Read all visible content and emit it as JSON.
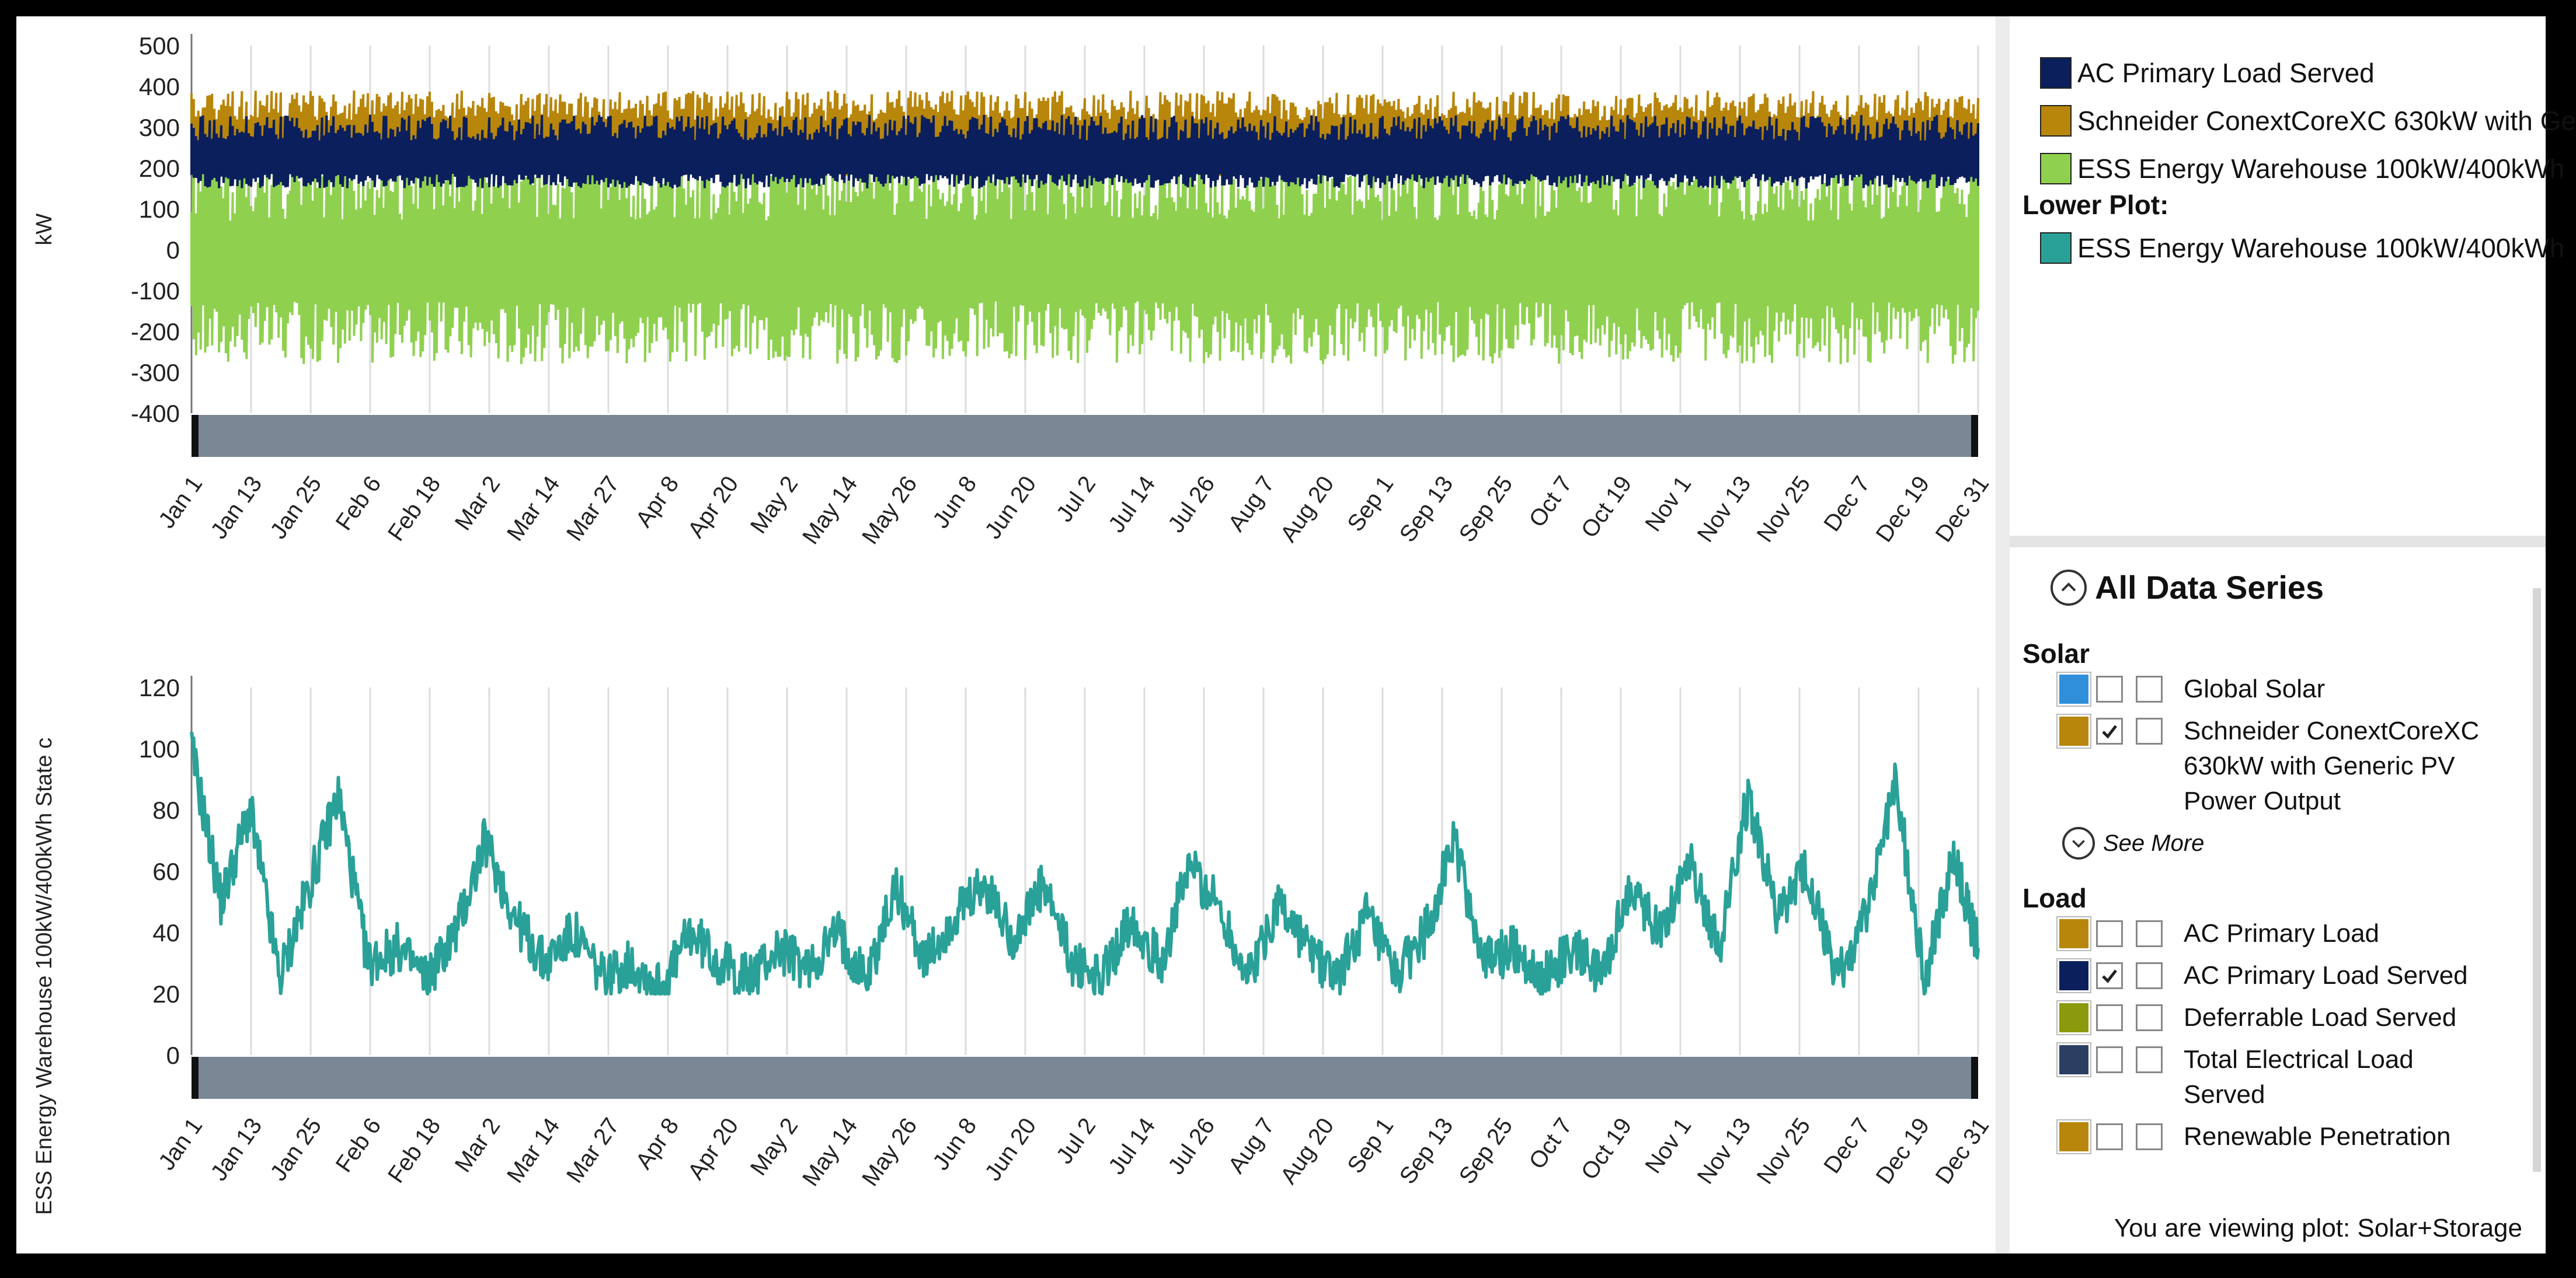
{
  "chart_data": [
    {
      "type": "area",
      "ylabel": "kW",
      "ylim": [
        -400,
        500
      ],
      "yticks": [
        500,
        400,
        300,
        200,
        100,
        0,
        -100,
        -200,
        -300,
        -400
      ],
      "x_tick_labels": [
        "Jan 1",
        "Jan 13",
        "Jan 25",
        "Feb 6",
        "Feb 18",
        "Mar 2",
        "Mar 14",
        "Mar 27",
        "Apr 8",
        "Apr 20",
        "May 2",
        "May 14",
        "May 26",
        "Jun 8",
        "Jun 20",
        "Jul 2",
        "Jul 14",
        "Jul 26",
        "Aug 7",
        "Aug 20",
        "Sep 1",
        "Sep 13",
        "Sep 25",
        "Oct 7",
        "Oct 19",
        "Nov 1",
        "Nov 13",
        "Nov 25",
        "Dec 7",
        "Dec 19",
        "Dec 31"
      ],
      "grid": true,
      "series": [
        {
          "name": "AC Primary Load Served",
          "color": "#0b1f5c",
          "band": [
            150,
            330
          ]
        },
        {
          "name": "Schneider ConextCoreXC 630kW with Ge",
          "color": "#b8860b",
          "band": [
            180,
            390
          ]
        },
        {
          "name": "ESS Energy Warehouse 100kW/400kWh",
          "color": "#8fd14f",
          "band": [
            -280,
            260
          ]
        }
      ]
    },
    {
      "type": "line",
      "ylabel": "ESS Energy Warehouse 100kW/400kWh State c",
      "ylim": [
        0,
        120
      ],
      "yticks": [
        120,
        100,
        80,
        60,
        40,
        20,
        0
      ],
      "x_tick_labels": [
        "Jan 1",
        "Jan 13",
        "Jan 25",
        "Feb 6",
        "Feb 18",
        "Mar 2",
        "Mar 14",
        "Mar 27",
        "Apr 8",
        "Apr 20",
        "May 2",
        "May 14",
        "May 26",
        "Jun 8",
        "Jun 20",
        "Jul 2",
        "Jul 14",
        "Jul 26",
        "Aug 7",
        "Aug 20",
        "Sep 1",
        "Sep 13",
        "Sep 25",
        "Oct 7",
        "Oct 19",
        "Nov 1",
        "Nov 13",
        "Nov 25",
        "Dec 7",
        "Dec 19",
        "Dec 31"
      ],
      "grid": true,
      "series": [
        {
          "name": "ESS Energy Warehouse 100kW/400kWh",
          "color": "#2aa198",
          "day": [
            0,
            6,
            12,
            18,
            24,
            30,
            36,
            42,
            48,
            54,
            60,
            66,
            72,
            78,
            84,
            90,
            96,
            102,
            108,
            114,
            120,
            126,
            132,
            138,
            144,
            150,
            156,
            162,
            168,
            174,
            180,
            186,
            192,
            198,
            204,
            210,
            216,
            222,
            228,
            234,
            240,
            246,
            252,
            258,
            264,
            270,
            276,
            282,
            288,
            294,
            300,
            306,
            312,
            318,
            324,
            330,
            336,
            342,
            348,
            354,
            360,
            365
          ],
          "values": [
            100,
            50,
            80,
            25,
            55,
            85,
            30,
            35,
            25,
            40,
            70,
            45,
            30,
            40,
            25,
            30,
            22,
            40,
            30,
            25,
            35,
            28,
            40,
            25,
            55,
            30,
            45,
            55,
            38,
            55,
            30,
            25,
            45,
            30,
            62,
            48,
            25,
            50,
            35,
            25,
            45,
            25,
            40,
            70,
            30,
            35,
            25,
            35,
            25,
            55,
            40,
            65,
            35,
            85,
            45,
            60,
            25,
            45,
            90,
            25,
            65,
            35
          ]
        }
      ]
    }
  ],
  "legend": {
    "items": [
      {
        "label": "AC Primary Load Served",
        "color": "#0b1f5c"
      },
      {
        "label": "Schneider ConextCoreXC 630kW with Ge",
        "color": "#b8860b"
      },
      {
        "label": "ESS Energy Warehouse 100kW/400kWh",
        "color": "#8fd14f"
      }
    ],
    "lower_heading": "Lower Plot:",
    "lower_items": [
      {
        "label": "ESS Energy Warehouse 100kW/400kWh",
        "color": "#2aa198"
      }
    ]
  },
  "series_panel": {
    "title": "All Data Series",
    "expand_icon": "chevron-up-icon",
    "groups": [
      {
        "label": "Solar",
        "items": [
          {
            "label": "Global Solar",
            "color": "#2f8fdb",
            "upper": false,
            "lower": false
          },
          {
            "label": "Schneider ConextCoreXC 630kW with Generic PV Power Output",
            "color": "#b8860b",
            "upper": true,
            "lower": false
          }
        ]
      },
      {
        "label": "Load",
        "items": [
          {
            "label": "AC Primary Load",
            "color": "#b8860b",
            "upper": false,
            "lower": false
          },
          {
            "label": "AC Primary Load Served",
            "color": "#0b1f5c",
            "upper": true,
            "lower": false
          },
          {
            "label": "Deferrable Load Served",
            "color": "#8a9a0c",
            "upper": false,
            "lower": false
          },
          {
            "label": "Total Electrical Load Served",
            "color": "#2b3f63",
            "upper": false,
            "lower": false
          },
          {
            "label": "Renewable Penetration",
            "color": "#b8860b",
            "upper": false,
            "lower": false
          }
        ]
      }
    ],
    "see_more": "See More",
    "see_more_icon": "chevron-down-icon"
  },
  "status_text": "You are viewing plot:  Solar+Storage"
}
